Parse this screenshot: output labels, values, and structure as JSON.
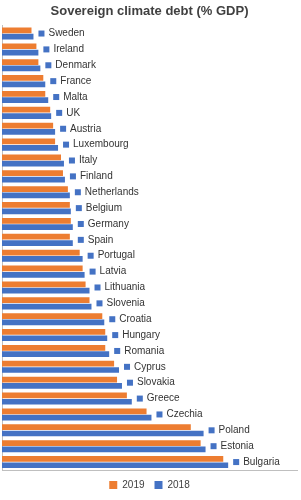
{
  "chart_data": {
    "type": "bar",
    "title": "Sovereign climate debt (% GDP)",
    "orientation": "horizontal",
    "categories": [
      "Sweden",
      "Ireland",
      "Denmark",
      "France",
      "Malta",
      "UK",
      "Austria",
      "Luxembourg",
      "Italy",
      "Finland",
      "Netherlands",
      "Belgium",
      "Germany",
      "Spain",
      "Portugal",
      "Latvia",
      "Lithuania",
      "Slovenia",
      "Croatia",
      "Hungary",
      "Romania",
      "Cyprus",
      "Slovakia",
      "Greece",
      "Czechia",
      "Poland",
      "Estonia",
      "Bulgaria"
    ],
    "series": [
      {
        "name": "2019",
        "color": "#ed7d31",
        "values": [
          30,
          35,
          37,
          42,
          44,
          49,
          52,
          54,
          60,
          62,
          67,
          69,
          70,
          69,
          79,
          82,
          85,
          89,
          102,
          105,
          105,
          114,
          117,
          127,
          147,
          192,
          202,
          225
        ]
      },
      {
        "name": "2018",
        "color": "#4472c4",
        "values": [
          32,
          37,
          39,
          44,
          47,
          50,
          54,
          57,
          63,
          64,
          69,
          70,
          72,
          72,
          82,
          84,
          89,
          91,
          104,
          107,
          109,
          119,
          122,
          132,
          152,
          205,
          207,
          230
        ]
      }
    ],
    "xlim": [
      0,
      300
    ],
    "xticks": [],
    "grid": false,
    "legend": "bottom",
    "tick_labels": false
  }
}
